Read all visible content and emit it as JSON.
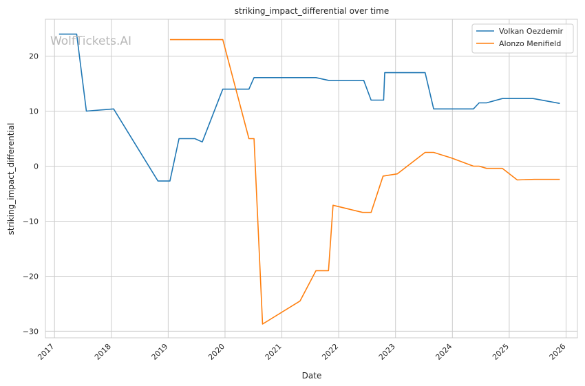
{
  "watermark": "WolfTickets.AI",
  "chart_data": {
    "type": "line",
    "title": "striking_impact_differential over time",
    "xlabel": "Date",
    "ylabel": "striking_impact_differential",
    "x_axis": "date",
    "xlim": [
      2016.84,
      2026.2
    ],
    "ylim": [
      -31.2,
      26.7
    ],
    "x_ticks": [
      2017,
      2018,
      2019,
      2020,
      2021,
      2022,
      2023,
      2024,
      2025,
      2026
    ],
    "y_ticks": [
      -30,
      -20,
      -10,
      0,
      10,
      20
    ],
    "y_tick_labels": [
      "−30",
      "−20",
      "−10",
      "0",
      "10",
      "20"
    ],
    "grid": true,
    "legend_position": "top-right",
    "series": [
      {
        "name": "Volkan Oezdemir",
        "color": "#1f77b4",
        "points": [
          [
            2017.08,
            24.0
          ],
          [
            2017.39,
            24.0
          ],
          [
            2017.56,
            10.0
          ],
          [
            2018.04,
            10.4
          ],
          [
            2018.82,
            -2.7
          ],
          [
            2019.03,
            -2.7
          ],
          [
            2019.19,
            5.0
          ],
          [
            2019.47,
            5.0
          ],
          [
            2019.6,
            4.4
          ],
          [
            2019.96,
            14.0
          ],
          [
            2020.42,
            14.0
          ],
          [
            2020.51,
            16.1
          ],
          [
            2021.6,
            16.1
          ],
          [
            2021.82,
            15.6
          ],
          [
            2022.44,
            15.6
          ],
          [
            2022.57,
            12.0
          ],
          [
            2022.79,
            12.0
          ],
          [
            2022.81,
            17.0
          ],
          [
            2023.52,
            17.0
          ],
          [
            2023.67,
            10.4
          ],
          [
            2024.37,
            10.4
          ],
          [
            2024.47,
            11.5
          ],
          [
            2024.6,
            11.5
          ],
          [
            2024.88,
            12.3
          ],
          [
            2025.42,
            12.3
          ],
          [
            2025.89,
            11.4
          ]
        ]
      },
      {
        "name": "Alonzo Menifield",
        "color": "#ff7f0e",
        "points": [
          [
            2019.03,
            23.0
          ],
          [
            2019.96,
            23.0
          ],
          [
            2020.42,
            5.0
          ],
          [
            2020.51,
            5.0
          ],
          [
            2020.66,
            -28.7
          ],
          [
            2021.32,
            -24.5
          ],
          [
            2021.6,
            -19.0
          ],
          [
            2021.82,
            -19.0
          ],
          [
            2021.9,
            -7.1
          ],
          [
            2022.42,
            -8.4
          ],
          [
            2022.57,
            -8.4
          ],
          [
            2022.78,
            -1.8
          ],
          [
            2023.03,
            -1.4
          ],
          [
            2023.52,
            2.5
          ],
          [
            2023.67,
            2.5
          ],
          [
            2023.98,
            1.5
          ],
          [
            2024.37,
            0.0
          ],
          [
            2024.47,
            0.0
          ],
          [
            2024.6,
            -0.4
          ],
          [
            2024.88,
            -0.4
          ],
          [
            2025.14,
            -2.5
          ],
          [
            2025.44,
            -2.4
          ],
          [
            2025.89,
            -2.4
          ]
        ]
      }
    ]
  }
}
